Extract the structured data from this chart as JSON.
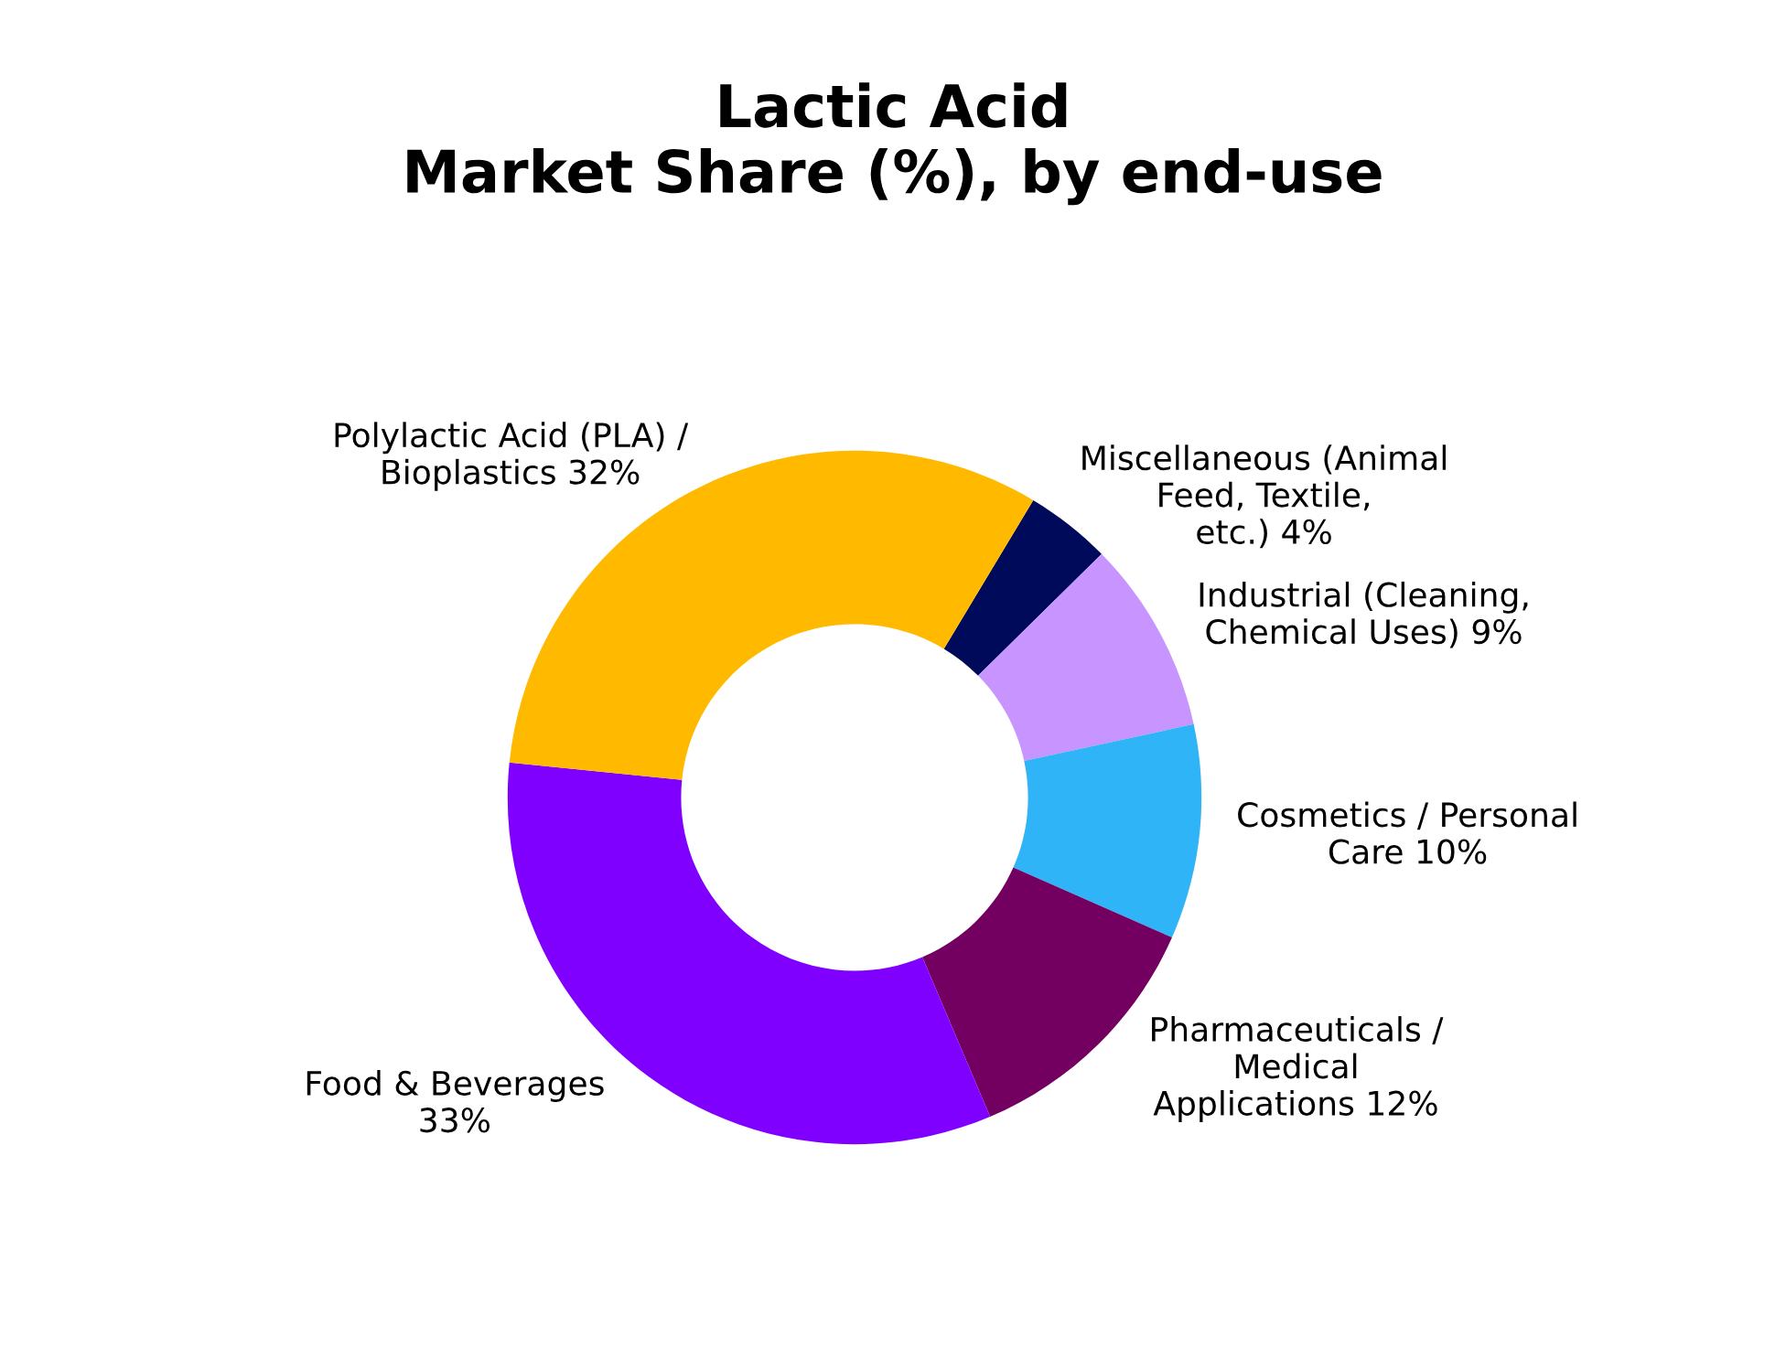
{
  "chart_data": {
    "type": "donut",
    "title": "Lactic Acid\nMarket Share (%), by end-use",
    "categories": [
      "Miscellaneous (Animal\nFeed, Textile,\netc.)",
      "Industrial (Cleaning,\nChemical Uses)",
      "Cosmetics / Personal\nCare",
      "Pharmaceuticals /\nMedical\nApplications",
      "Food & Beverages\n",
      "Polylactic Acid (PLA) /\nBioplastics"
    ],
    "values": [
      4,
      9,
      10,
      12,
      33,
      32
    ],
    "colors": [
      "#000a5a",
      "#c894ff",
      "#30b4f8",
      "#730060",
      "#8000ff",
      "#ffba00"
    ],
    "value_labels": [
      "4%",
      "9%",
      "10%",
      "12%",
      "33%",
      "32%"
    ],
    "legend": false
  }
}
